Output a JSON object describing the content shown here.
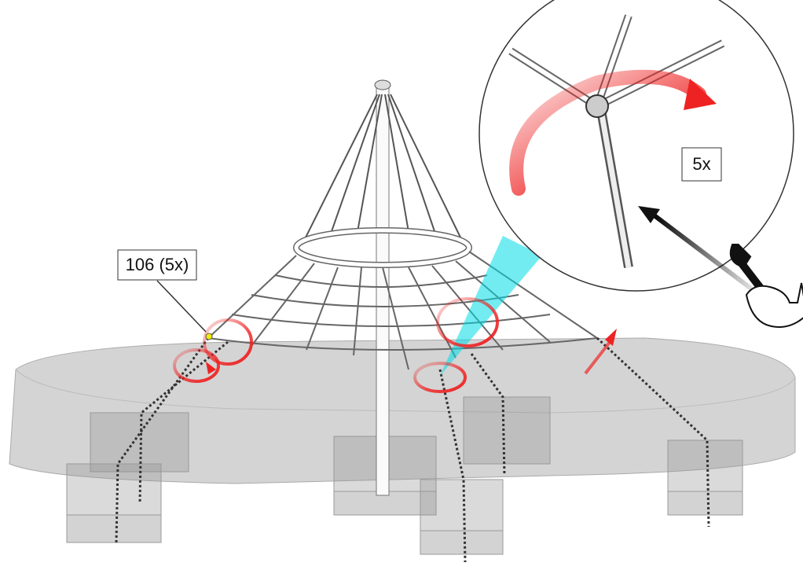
{
  "callouts": {
    "part_label": "106 (5x)",
    "detail_label": "5x"
  }
}
